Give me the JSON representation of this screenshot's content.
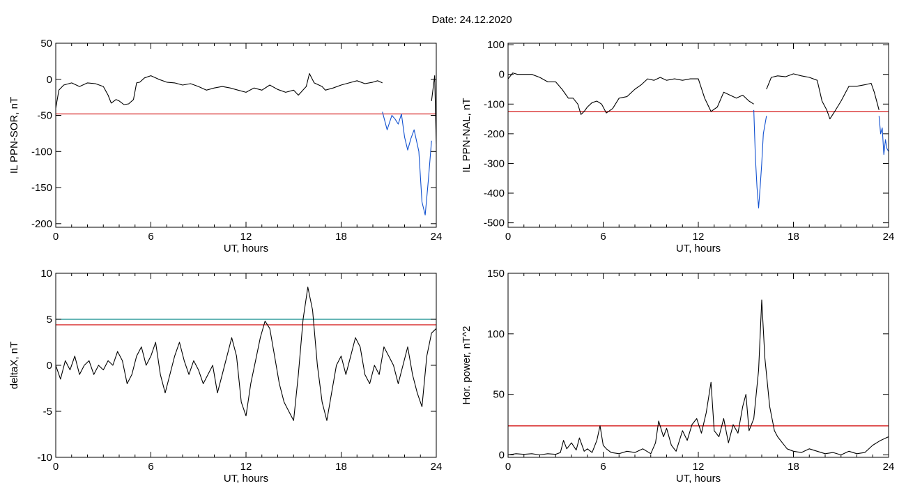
{
  "figure": {
    "title": "Date:  24.12.2020"
  },
  "chart_data": [
    {
      "id": "p1",
      "type": "line",
      "xlabel": "UT, hours",
      "ylabel": "IL PPN-SOR, nT",
      "xlim": [
        0,
        24
      ],
      "ylim": [
        -205,
        50
      ],
      "xticks": [
        0,
        6,
        12,
        18,
        24
      ],
      "yticks": [
        50,
        0,
        -50,
        -100,
        -150,
        -200
      ],
      "hlines": [
        {
          "y": -48,
          "color": "#d00000"
        }
      ],
      "series": [
        {
          "color": "#000000",
          "x": [
            0,
            0.2,
            0.5,
            1.0,
            1.5,
            2.0,
            2.5,
            3.0,
            3.3,
            3.5,
            3.8,
            4.0,
            4.3,
            4.6,
            4.9,
            5.1,
            5.3,
            5.6,
            6.0,
            6.5,
            7.0,
            7.5,
            8.0,
            8.5,
            9.0,
            9.5,
            10.0,
            10.5,
            11.0,
            11.5,
            12.0,
            12.5,
            13.0,
            13.5,
            14.0,
            14.5,
            15.0,
            15.3,
            15.8,
            16.0,
            16.3,
            16.8,
            17.0,
            17.5,
            18.0,
            18.5,
            19.0,
            19.5,
            20.0,
            20.3,
            20.6
          ],
          "y": [
            -40,
            -15,
            -8,
            -5,
            -10,
            -5,
            -6,
            -10,
            -22,
            -33,
            -28,
            -30,
            -35,
            -34,
            -28,
            -5,
            -4,
            2,
            5,
            0,
            -4,
            -5,
            -8,
            -6,
            -10,
            -15,
            -12,
            -10,
            -12,
            -15,
            -18,
            -12,
            -15,
            -8,
            -14,
            -18,
            -15,
            -22,
            -10,
            8,
            -5,
            -10,
            -15,
            -12,
            -8,
            -5,
            -2,
            -6,
            -4,
            -2,
            -5
          ]
        },
        {
          "color": "#1050d0",
          "x": [
            20.6,
            20.9,
            21.2,
            21.4,
            21.6,
            21.8,
            22.0,
            22.2,
            22.4,
            22.6,
            22.9,
            23.1,
            23.3,
            23.5,
            23.7
          ],
          "y": [
            -45,
            -70,
            -50,
            -55,
            -62,
            -48,
            -80,
            -98,
            -82,
            -70,
            -100,
            -170,
            -188,
            -140,
            -85
          ]
        },
        {
          "color": "#000000",
          "x": [
            23.7,
            23.9,
            24.0
          ],
          "y": [
            -30,
            5,
            -90
          ]
        }
      ]
    },
    {
      "id": "p2",
      "type": "line",
      "xlabel": "UT, hours",
      "ylabel": "IL PPN-NAL, nT",
      "xlim": [
        0,
        24
      ],
      "ylim": [
        -515,
        105
      ],
      "xticks": [
        0,
        6,
        12,
        18,
        24
      ],
      "yticks": [
        100,
        0,
        -100,
        -200,
        -300,
        -400,
        -500
      ],
      "hlines": [
        {
          "y": -125,
          "color": "#d00000"
        }
      ],
      "series": [
        {
          "color": "#000000",
          "x": [
            0,
            0.3,
            0.6,
            1.0,
            1.5,
            2.0,
            2.5,
            3.0,
            3.4,
            3.8,
            4.1,
            4.4,
            4.6,
            4.8,
            5.0,
            5.3,
            5.6,
            5.9,
            6.2,
            6.6,
            7.0,
            7.5,
            8.0,
            8.4,
            8.8,
            9.2,
            9.6,
            10.0,
            10.5,
            11.0,
            11.5,
            12.0,
            12.4,
            12.8,
            13.2,
            13.6,
            14.0,
            14.4,
            14.8,
            15.2,
            15.5
          ],
          "y": [
            -15,
            5,
            0,
            0,
            0,
            -10,
            -25,
            -25,
            -50,
            -80,
            -80,
            -100,
            -135,
            -125,
            -110,
            -95,
            -90,
            -100,
            -130,
            -115,
            -80,
            -75,
            -50,
            -35,
            -15,
            -20,
            -10,
            -20,
            -15,
            -20,
            -15,
            -15,
            -80,
            -125,
            -110,
            -60,
            -70,
            -80,
            -70,
            -90,
            -100
          ]
        },
        {
          "color": "#1050d0",
          "x": [
            15.5,
            15.6,
            15.7,
            15.8,
            15.9,
            16.0,
            16.1,
            16.3
          ],
          "y": [
            -120,
            -280,
            -380,
            -450,
            -380,
            -300,
            -200,
            -140
          ]
        },
        {
          "color": "#000000",
          "x": [
            16.3,
            16.6,
            17.0,
            17.5,
            18.0,
            18.5,
            19.0,
            19.5,
            19.8,
            20.1,
            20.3,
            20.6,
            21.0,
            21.5,
            22.0,
            22.5,
            22.9,
            23.1,
            23.4
          ],
          "y": [
            -50,
            -10,
            -5,
            -8,
            2,
            -5,
            -10,
            -20,
            -90,
            -120,
            -150,
            -125,
            -90,
            -40,
            -40,
            -35,
            -30,
            -60,
            -120
          ]
        },
        {
          "color": "#1050d0",
          "x": [
            23.4,
            23.5,
            23.6,
            23.7,
            23.8,
            23.9,
            24.0
          ],
          "y": [
            -140,
            -200,
            -180,
            -270,
            -220,
            -250,
            -260
          ]
        }
      ]
    },
    {
      "id": "p3",
      "type": "line",
      "xlabel": "UT, hours",
      "ylabel": "deltaX, nT",
      "xlim": [
        0,
        24
      ],
      "ylim": [
        -10,
        10
      ],
      "xticks": [
        0,
        6,
        12,
        18,
        24
      ],
      "yticks": [
        10,
        5,
        0,
        -5,
        -10
      ],
      "hlines": [
        {
          "y": 5,
          "color": "#0a8a8a"
        },
        {
          "y": 4.4,
          "color": "#d00000"
        }
      ],
      "series": [
        {
          "color": "#000000",
          "x": [
            0,
            0.3,
            0.6,
            0.9,
            1.2,
            1.5,
            1.8,
            2.1,
            2.4,
            2.7,
            3.0,
            3.3,
            3.6,
            3.9,
            4.2,
            4.5,
            4.8,
            5.1,
            5.4,
            5.7,
            6.0,
            6.3,
            6.6,
            6.9,
            7.2,
            7.5,
            7.8,
            8.1,
            8.4,
            8.7,
            9.0,
            9.3,
            9.6,
            9.9,
            10.2,
            10.5,
            10.8,
            11.1,
            11.4,
            11.7,
            12.0,
            12.3,
            12.6,
            12.9,
            13.2,
            13.5,
            13.8,
            14.1,
            14.4,
            14.7,
            15.0,
            15.3,
            15.6,
            15.9,
            16.2,
            16.5,
            16.8,
            17.1,
            17.4,
            17.7,
            18.0,
            18.3,
            18.6,
            18.9,
            19.2,
            19.5,
            19.8,
            20.1,
            20.4,
            20.7,
            21.0,
            21.3,
            21.6,
            21.9,
            22.2,
            22.5,
            22.8,
            23.1,
            23.4,
            23.7,
            24.0
          ],
          "y": [
            0,
            -1.5,
            0.5,
            -0.5,
            1,
            -1,
            0,
            0.5,
            -1,
            0,
            -0.5,
            0.5,
            0,
            1.5,
            0.5,
            -2,
            -1,
            1,
            2,
            0,
            1,
            2.5,
            -1,
            -3,
            -1,
            1,
            2.5,
            0.5,
            -1,
            0.5,
            -0.5,
            -2,
            -1,
            0,
            -3,
            -1,
            1,
            3,
            1,
            -4,
            -5.5,
            -2,
            0.5,
            3,
            4.8,
            4,
            1,
            -2,
            -4,
            -5,
            -6,
            -1,
            5,
            8.5,
            6,
            0,
            -4,
            -6,
            -3,
            0,
            1,
            -1,
            1,
            3,
            2,
            -1,
            -2,
            0,
            -1,
            2,
            1,
            0,
            -2,
            0,
            2,
            -1,
            -3,
            -4.5,
            1,
            3.5,
            4
          ]
        }
      ]
    },
    {
      "id": "p4",
      "type": "line",
      "xlabel": "UT, hours",
      "ylabel": "Hor. power, nT^2",
      "xlim": [
        0,
        24
      ],
      "ylim": [
        -2,
        150
      ],
      "xticks": [
        0,
        6,
        12,
        18,
        24
      ],
      "yticks": [
        150,
        100,
        50,
        0
      ],
      "hlines": [
        {
          "y": 24,
          "color": "#d00000"
        }
      ],
      "series": [
        {
          "color": "#000000",
          "x": [
            0,
            0.5,
            1.0,
            1.5,
            2.0,
            2.5,
            3.0,
            3.3,
            3.5,
            3.7,
            4.0,
            4.3,
            4.5,
            4.8,
            5.0,
            5.3,
            5.6,
            5.8,
            6.0,
            6.2,
            6.5,
            7.0,
            7.5,
            8.0,
            8.5,
            9.0,
            9.3,
            9.5,
            9.8,
            10.0,
            10.3,
            10.6,
            11.0,
            11.3,
            11.6,
            11.9,
            12.2,
            12.5,
            12.8,
            13.0,
            13.3,
            13.6,
            13.9,
            14.2,
            14.5,
            14.8,
            15.0,
            15.2,
            15.5,
            15.8,
            16.0,
            16.2,
            16.5,
            16.8,
            17.0,
            17.3,
            17.6,
            18.0,
            18.5,
            19.0,
            19.5,
            20.0,
            20.5,
            21.0,
            21.5,
            22.0,
            22.5,
            23.0,
            23.5,
            24.0
          ],
          "y": [
            0,
            1,
            0.5,
            1,
            0,
            1,
            0.5,
            2,
            12,
            5,
            10,
            4,
            14,
            3,
            5,
            2,
            12,
            24,
            8,
            5,
            2,
            1,
            3,
            2,
            5,
            1,
            10,
            28,
            15,
            22,
            8,
            3,
            20,
            12,
            25,
            30,
            18,
            35,
            60,
            20,
            15,
            30,
            10,
            25,
            18,
            40,
            50,
            20,
            30,
            70,
            128,
            80,
            40,
            20,
            15,
            10,
            5,
            3,
            2,
            5,
            3,
            1,
            2,
            0,
            3,
            1,
            2,
            8,
            12,
            15
          ]
        }
      ]
    }
  ]
}
